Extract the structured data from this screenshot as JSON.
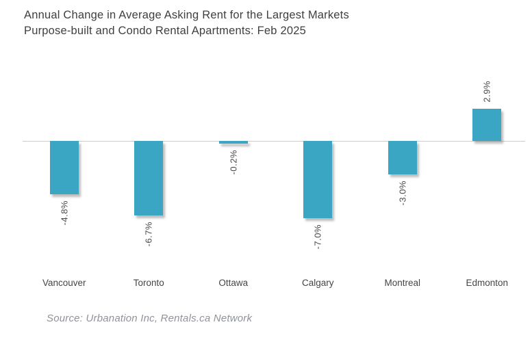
{
  "title": {
    "line1": "Annual Change in Average Asking Rent for the Largest Markets",
    "line2": "Purpose-built and Condo Rental Apartments: Feb 2025"
  },
  "source": "Source: Urbanation Inc, Rentals.ca Network",
  "chart_data": {
    "type": "bar",
    "title": "Annual Change in Average Asking Rent for the Largest Markets — Purpose-built and Condo Rental Apartments: Feb 2025",
    "categories": [
      "Vancouver",
      "Toronto",
      "Ottawa",
      "Calgary",
      "Montreal",
      "Edmonton"
    ],
    "values": [
      -4.8,
      -6.7,
      -0.2,
      -7.0,
      -3.0,
      2.9
    ],
    "value_labels": [
      "-4.8%",
      "-6.7%",
      "-0.2%",
      "-7.0%",
      "-3.0%",
      "2.9%"
    ],
    "xlabel": "",
    "ylabel": "",
    "unit": "%",
    "baseline": 0,
    "ylim": [
      -8,
      4
    ],
    "grid": false,
    "legend": false,
    "value_label_rotation_deg": -90,
    "bar_color": "#3aa6c3",
    "axis_line_color": "#cccccc"
  },
  "colors": {
    "background": "#ffffff",
    "title_text": "#3f3f3f",
    "label_text": "#4a4a4a",
    "source_text": "#8e939b"
  }
}
